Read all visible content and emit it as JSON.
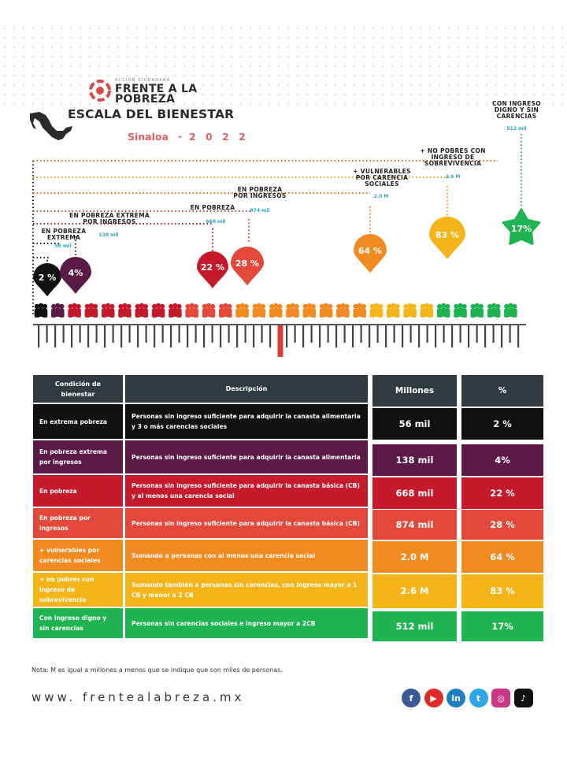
{
  "header": {
    "org_small": "ACCIÓN CIUDADANA",
    "org_line1": "FRENTE A LA",
    "org_line2": "POBREZA",
    "title": "ESCALA DEL BIENESTAR",
    "state": "Sinaloa",
    "dash": "-",
    "year": "2 0 2 2"
  },
  "colors": {
    "extrema": "#111111",
    "extrema_ingresos": "#5a1a45",
    "pobreza": "#c41a2b",
    "pobreza_ingresos": "#e2493a",
    "vulnerables": "#f28a22",
    "no_pobres_sobrevivencia": "#f4b51a",
    "digno": "#1fb352",
    "header_cell": "#2f3b40"
  },
  "chart_data": {
    "type": "bar",
    "title": "ESCALA DEL BIENESTAR",
    "categories": [
      "EN POBREZA EXTREMA",
      "EN POBREZA EXTREMA POR INGRESOS",
      "EN POBREZA",
      "EN POBREZA POR INGRESOS",
      "+ VULNERABLES POR CARENCIA SOCIALES",
      "+ NO POBRES CON INGRESO DE SOBREVIVENCIA",
      "CON INGRESO DIGNO Y SIN CARENCIAS"
    ],
    "values": [
      2,
      4,
      22,
      28,
      64,
      83,
      17
    ],
    "value_labels": [
      "2 %",
      "4%",
      "22 %",
      "28 %",
      "64 %",
      "83 %",
      "17%"
    ],
    "people": [
      "56 mil",
      "138 mil",
      "668 mil",
      "874 mil",
      "2.0 M",
      "2.6 M",
      "512 mil"
    ],
    "ylabel": "%",
    "ylim": [
      0,
      100
    ]
  },
  "callouts": [
    {
      "label": "EN POBREZA EXTREMA",
      "value": "56 mil"
    },
    {
      "label": "EN POBREZA EXTREMA POR INGRESOS",
      "value": "138 mil"
    },
    {
      "label": "EN POBREZA",
      "value": "668 mil"
    },
    {
      "label": "EN POBREZA POR INGRESOS",
      "value": "874 mil"
    },
    {
      "label": "+ VULNERABLES POR CARENCIA SOCIALES",
      "value": "2.0 M"
    },
    {
      "label": "+ NO POBRES CON INGRESO DE SOBREVIVENCIA",
      "value": "2.6 M"
    },
    {
      "label": "CON INGRESO DIGNO Y SIN CARENCIAS",
      "value": "512 mil"
    }
  ],
  "table": {
    "headers": [
      "Condición de bienestar",
      "Descripción",
      "Millones",
      "%"
    ],
    "rows": [
      {
        "condition": "En extrema pobreza",
        "description": "Personas sin ingreso suficiente para adquirir la canasta alimentaria y 3 o más carencias sociales",
        "millions": "56 mil",
        "percent": "2 %"
      },
      {
        "condition": "En pobreza extrema por ingresos",
        "description": "Personas sin ingreso suficiente para adquirir la canasta alimentaria",
        "millions": "138 mil",
        "percent": "4%"
      },
      {
        "condition": "En pobreza",
        "description": "Personas sin ingreso suficiente para adquirir la canasta básica (CB) y al menos una carencia social",
        "millions": "668 mil",
        "percent": "22 %"
      },
      {
        "condition": "En pobreza por ingresos",
        "description": "Personas sin ingreso suficiente para adquirir la canasta básica (CB)",
        "millions": "874 mil",
        "percent": "28 %"
      },
      {
        "condition": "+ vulnerables por carencias sociales",
        "description": "Sumando a personas con al menos una carencia social",
        "millions": "2.0 M",
        "percent": "64 %"
      },
      {
        "condition": "+ no pobres con ingreso de sobrevivencia",
        "description": "Sumando también a personas sin carencias, con ingreso mayor a 1 CB y menor a 2 CB",
        "millions": "2.6 M",
        "percent": "83 %"
      },
      {
        "condition": "Con ingreso digno y sin carencias",
        "description": "Personas sin carencias sociales e ingreso mayor a 2CB",
        "millions": "512 mil",
        "percent": "17%"
      }
    ]
  },
  "footer": {
    "note": "Nota: M es igual a millones a menos que se indique que son miles de personas.",
    "website": "www. frentealabreza.mx",
    "social": [
      {
        "icon": "facebook-icon",
        "glyph": "f",
        "color": "#3b5998"
      },
      {
        "icon": "youtube-icon",
        "glyph": "▶",
        "color": "#e02a2a"
      },
      {
        "icon": "linkedin-icon",
        "glyph": "in",
        "color": "#1f7fc0"
      },
      {
        "icon": "twitter-icon",
        "glyph": "t",
        "color": "#2ea6e8"
      },
      {
        "icon": "instagram-icon",
        "glyph": "◎",
        "color": "#c93786"
      },
      {
        "icon": "tiktok-icon",
        "glyph": "♪",
        "color": "#111111"
      }
    ]
  }
}
